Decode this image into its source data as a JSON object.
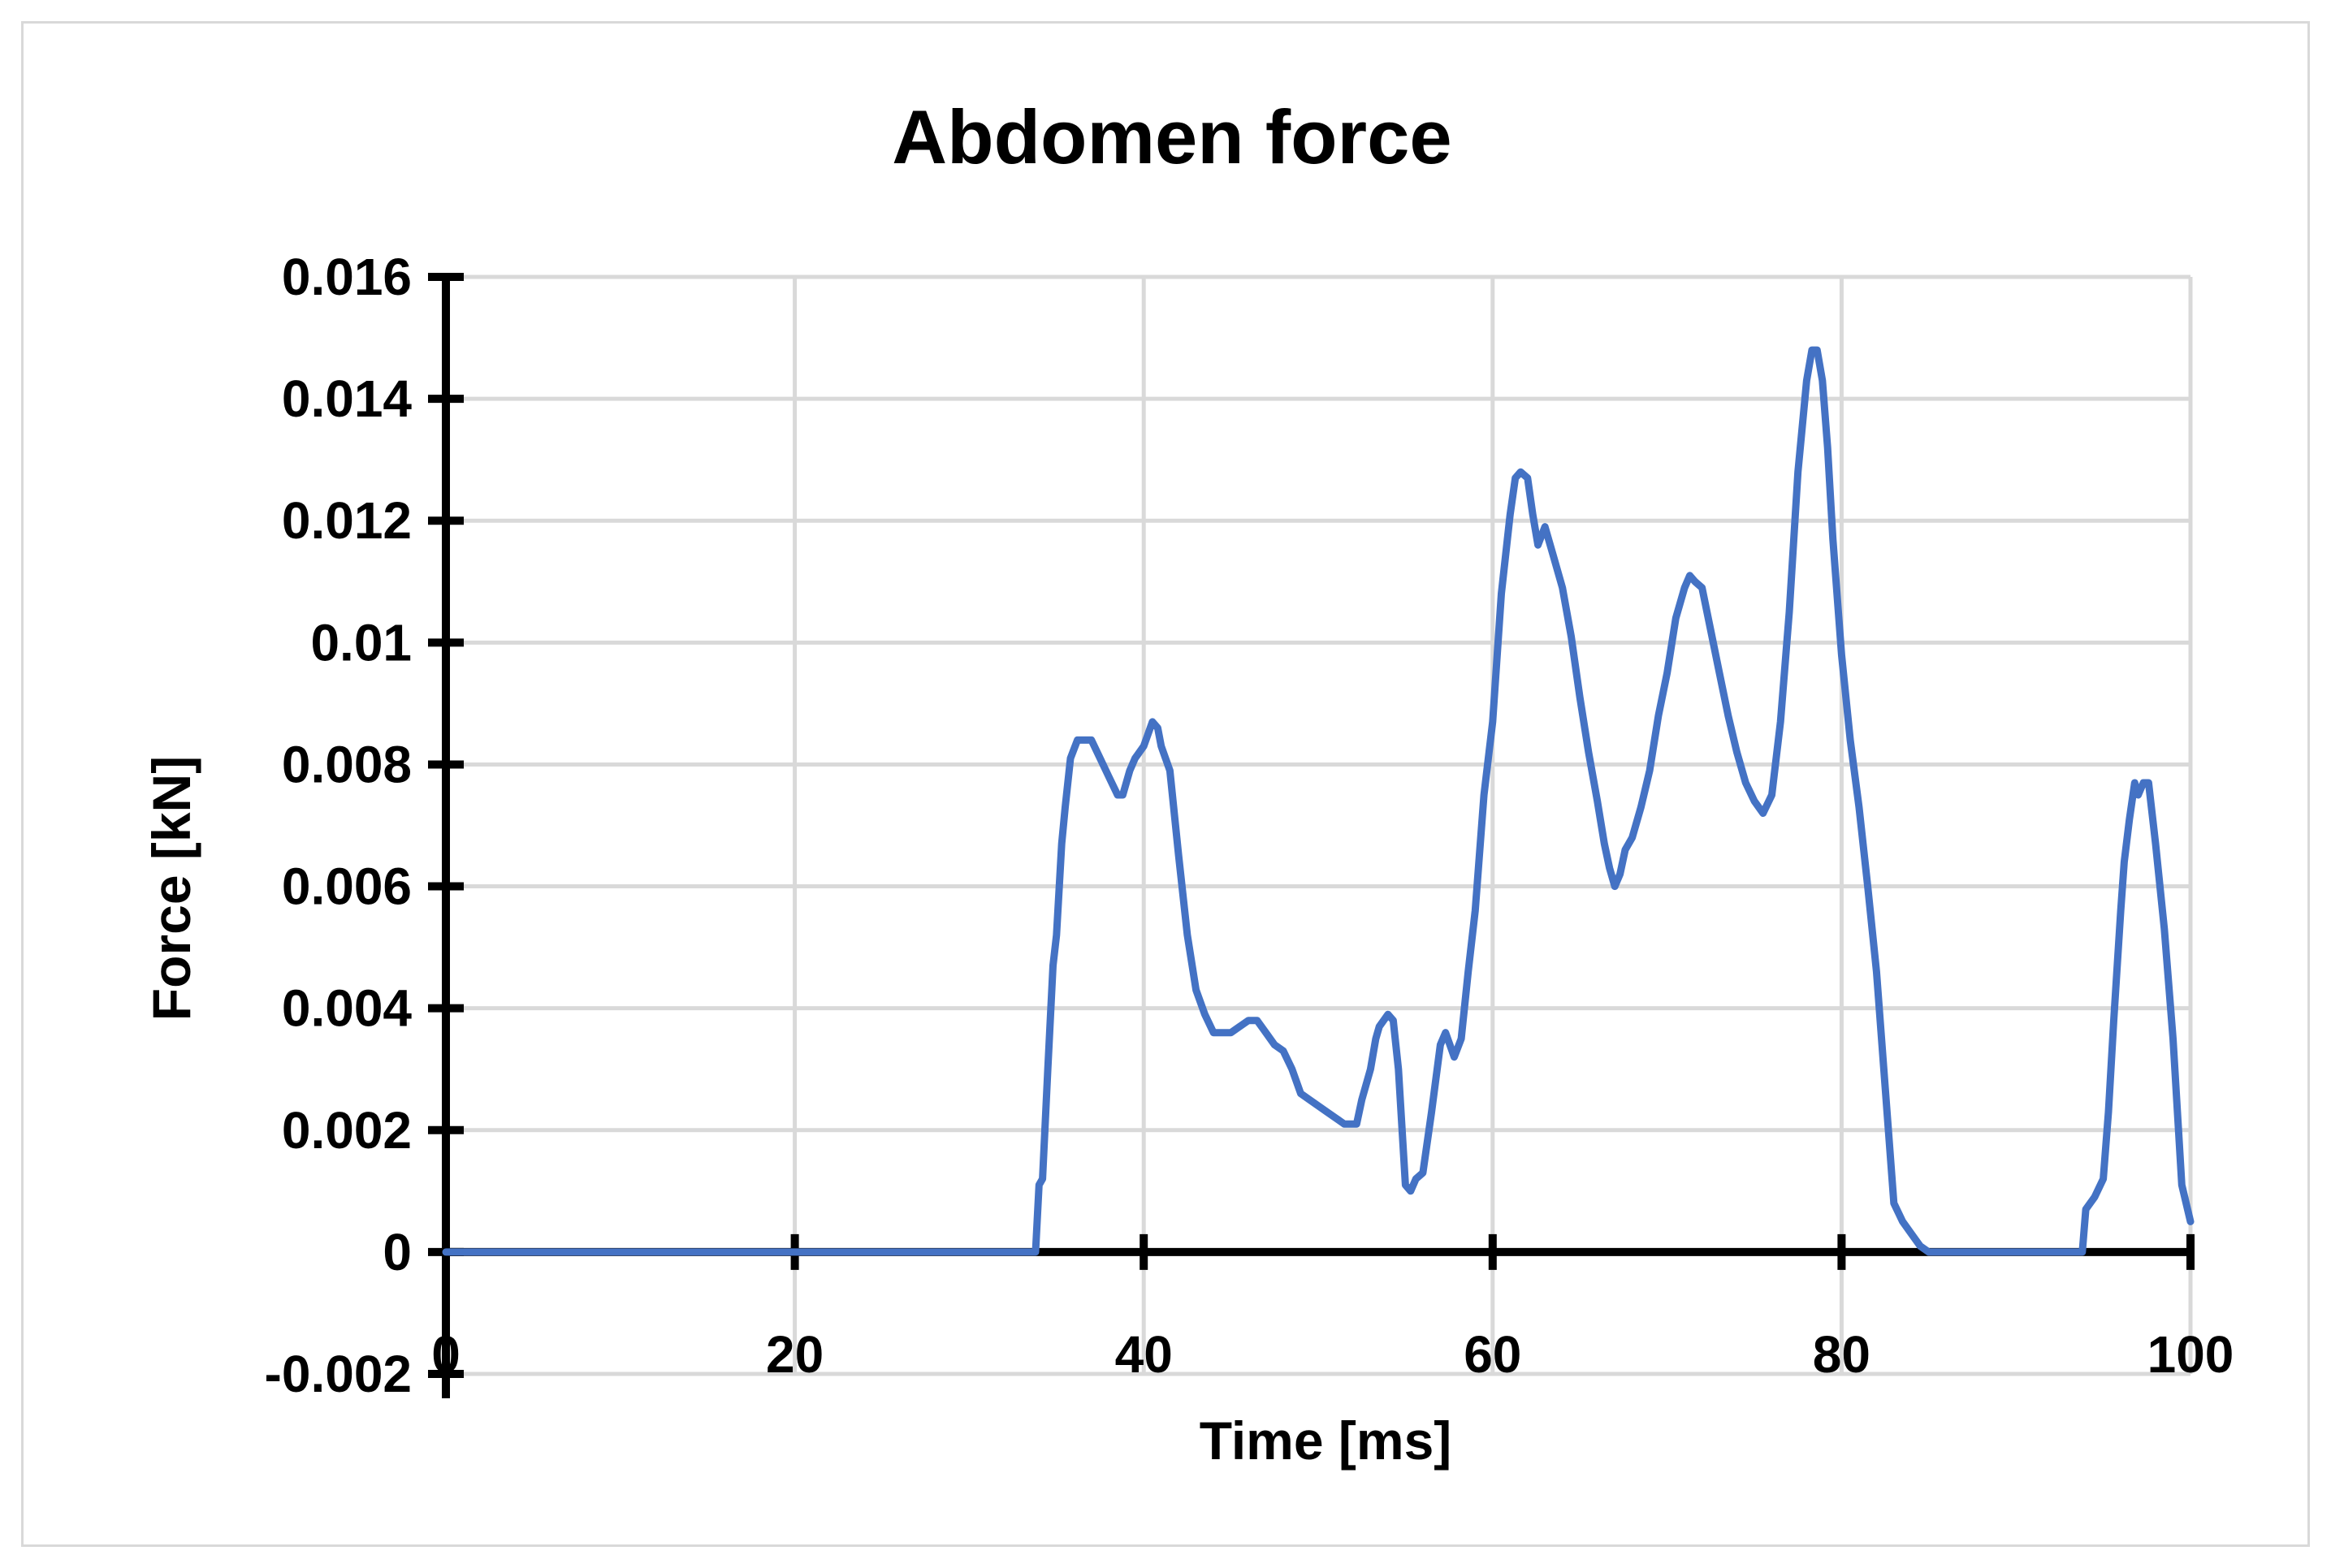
{
  "chart_data": {
    "type": "line",
    "title": "Abdomen force",
    "xlabel": "Time [ms]",
    "ylabel": "Force [kN]",
    "xlim": [
      0,
      100
    ],
    "ylim": [
      -0.002,
      0.016
    ],
    "x_ticks": [
      0,
      20,
      40,
      60,
      80,
      100
    ],
    "x_tick_labels": [
      "0",
      "20",
      "40",
      "60",
      "80",
      "100"
    ],
    "y_ticks": [
      -0.002,
      0,
      0.002,
      0.004,
      0.006,
      0.008,
      0.01,
      0.012,
      0.014,
      0.016
    ],
    "y_tick_labels": [
      "-0.002",
      "0",
      "0.002",
      "0.004",
      "0.006",
      "0.008",
      "0.01",
      "0.012",
      "0.014",
      "0.016"
    ],
    "grid": true,
    "legend": "none",
    "series_color": "#4472c4",
    "series": [
      {
        "x": [
          0,
          10,
          20,
          30,
          33.8,
          34.0,
          34.2,
          34.5,
          34.8,
          35.0,
          35.3,
          35.5,
          35.8,
          36.2,
          36.5,
          37.0,
          37.5,
          38.0,
          38.5,
          38.8,
          39.2,
          39.5,
          40.0,
          40.5,
          40.8,
          41.0,
          41.5,
          42.0,
          42.5,
          43.0,
          43.5,
          44.0,
          44.5,
          45.0,
          45.5,
          46.0,
          46.5,
          47.0,
          47.5,
          48.0,
          48.5,
          49.0,
          49.5,
          50.0,
          50.5,
          51.0,
          51.5,
          52.0,
          52.2,
          52.5,
          53.0,
          53.3,
          53.5,
          54.0,
          54.3,
          54.6,
          55.0,
          55.3,
          55.6,
          56.0,
          56.5,
          57.0,
          57.3,
          57.8,
          58.2,
          58.6,
          59.0,
          59.5,
          60.0,
          60.5,
          61.0,
          61.3,
          61.6,
          62.0,
          62.3,
          62.6,
          63.0,
          63.5,
          64.0,
          64.5,
          65.0,
          65.5,
          66.0,
          66.4,
          66.7,
          67.0,
          67.3,
          67.6,
          68.0,
          68.5,
          69.0,
          69.5,
          70.0,
          70.5,
          71.0,
          71.3,
          71.6,
          72.0,
          72.5,
          73.0,
          73.5,
          74.0,
          74.5,
          75.0,
          75.5,
          76.0,
          76.5,
          77.0,
          77.5,
          78.0,
          78.3,
          78.6,
          78.9,
          79.2,
          79.5,
          80.0,
          80.5,
          81.0,
          81.5,
          82.0,
          82.5,
          83.0,
          83.5,
          84.0,
          84.5,
          85.0,
          88.0,
          91.0,
          93.8,
          94.0,
          94.5,
          95.0,
          95.3,
          95.6,
          96.0,
          96.2,
          96.5,
          96.8,
          97.0,
          97.3,
          97.6,
          98.0,
          98.5,
          99.0,
          99.5,
          100.0
        ],
        "y": [
          0,
          0,
          0,
          0,
          0,
          0.0011,
          0.0012,
          0.003,
          0.0047,
          0.0052,
          0.0067,
          0.0073,
          0.0081,
          0.0084,
          0.0084,
          0.0084,
          0.0081,
          0.0078,
          0.0075,
          0.0075,
          0.0079,
          0.0081,
          0.0083,
          0.0087,
          0.0086,
          0.0083,
          0.0079,
          0.0065,
          0.0052,
          0.0043,
          0.0039,
          0.0036,
          0.0036,
          0.0036,
          0.0037,
          0.0038,
          0.0038,
          0.0036,
          0.0034,
          0.0033,
          0.003,
          0.0026,
          0.0025,
          0.0024,
          0.0023,
          0.0022,
          0.0021,
          0.0021,
          0.0021,
          0.0025,
          0.003,
          0.0035,
          0.0037,
          0.0039,
          0.0038,
          0.003,
          0.0011,
          0.001,
          0.0012,
          0.0013,
          0.0023,
          0.0034,
          0.0036,
          0.0032,
          0.0035,
          0.0046,
          0.0056,
          0.0075,
          0.0087,
          0.0108,
          0.0121,
          0.0127,
          0.0128,
          0.0127,
          0.0121,
          0.0116,
          0.0119,
          0.0114,
          0.0109,
          0.0101,
          0.0091,
          0.0082,
          0.0074,
          0.0067,
          0.0063,
          0.006,
          0.0062,
          0.0066,
          0.0068,
          0.0073,
          0.0079,
          0.0088,
          0.0095,
          0.0104,
          0.0109,
          0.0111,
          0.011,
          0.0109,
          0.0102,
          0.0095,
          0.0088,
          0.0082,
          0.0077,
          0.0074,
          0.0072,
          0.0075,
          0.0087,
          0.0105,
          0.0128,
          0.0143,
          0.0148,
          0.0148,
          0.0143,
          0.0132,
          0.0117,
          0.0098,
          0.0084,
          0.0073,
          0.006,
          0.0046,
          0.0027,
          0.0008,
          0.0005,
          0.0003,
          0.0001,
          0,
          0,
          0,
          0,
          0.0007,
          0.0009,
          0.0012,
          0.0023,
          0.0038,
          0.0056,
          0.0064,
          0.0071,
          0.0077,
          0.0075,
          0.0077,
          0.0077,
          0.0067,
          0.0053,
          0.0035,
          0.0011,
          0.0005
        ]
      }
    ]
  }
}
